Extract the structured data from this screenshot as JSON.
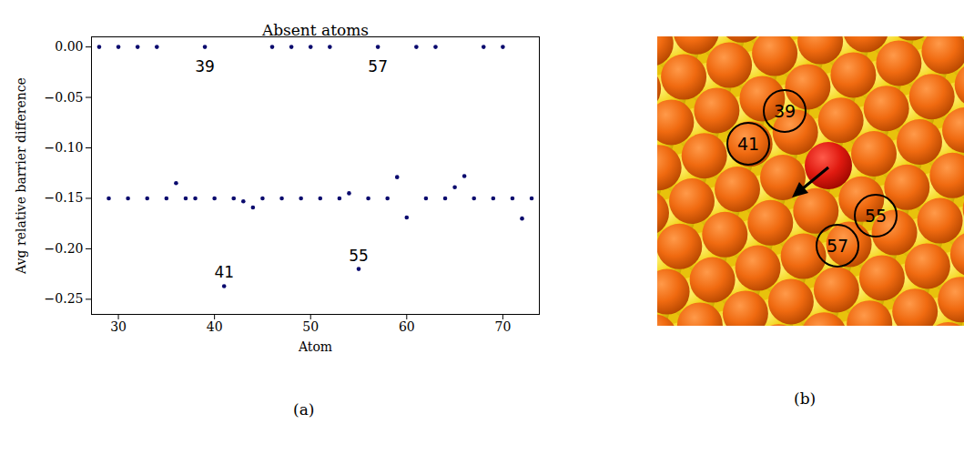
{
  "chart_data": {
    "type": "scatter",
    "title": "Absent atoms",
    "x_label": "Atom",
    "y_label": "Avg relative barrier difference",
    "x": [
      28,
      29,
      30,
      31,
      32,
      33,
      34,
      35,
      36,
      37,
      38,
      39,
      40,
      41,
      42,
      43,
      44,
      45,
      46,
      47,
      48,
      49,
      50,
      51,
      52,
      53,
      54,
      55,
      56,
      57,
      58,
      59,
      60,
      61,
      62,
      63,
      64,
      65,
      66,
      67,
      68,
      69,
      70,
      71,
      72,
      73
    ],
    "values": [
      0,
      -0.15,
      0,
      -0.15,
      0,
      -0.15,
      0,
      -0.15,
      -0.135,
      -0.15,
      -0.15,
      0,
      -0.15,
      -0.237,
      -0.15,
      -0.153,
      -0.159,
      -0.15,
      0,
      -0.15,
      0,
      -0.15,
      0,
      -0.15,
      0,
      -0.15,
      -0.145,
      -0.22,
      -0.15,
      0,
      -0.15,
      -0.129,
      -0.169,
      0,
      -0.15,
      0,
      -0.15,
      -0.139,
      -0.128,
      -0.15,
      0,
      -0.15,
      0,
      -0.15,
      -0.17,
      -0.15
    ],
    "color": "#0a0a6e",
    "marker": "circle",
    "xlim": [
      27.2,
      73.8
    ],
    "ylim": [
      -0.265,
      0.01
    ],
    "xticks": [
      30,
      40,
      50,
      60,
      70
    ],
    "yticks": [
      {
        "value": -0.25,
        "label": "−0.25"
      },
      {
        "value": -0.2,
        "label": "−0.20"
      },
      {
        "value": -0.15,
        "label": "−0.15"
      },
      {
        "value": -0.1,
        "label": "−0.10"
      },
      {
        "value": -0.05,
        "label": "−0.05"
      },
      {
        "value": 0,
        "label": "0.00"
      }
    ],
    "grid": false,
    "annotations": [
      {
        "text": "39",
        "x": 39,
        "y": -0.02
      },
      {
        "text": "57",
        "x": 57,
        "y": -0.02
      },
      {
        "text": "41",
        "x": 41,
        "y": -0.224
      },
      {
        "text": "55",
        "x": 55,
        "y": -0.207
      }
    ]
  },
  "panels": {
    "a": "(a)",
    "b": "(b)"
  },
  "diagram": {
    "marked_atoms": [
      "39",
      "41",
      "55",
      "57"
    ]
  }
}
